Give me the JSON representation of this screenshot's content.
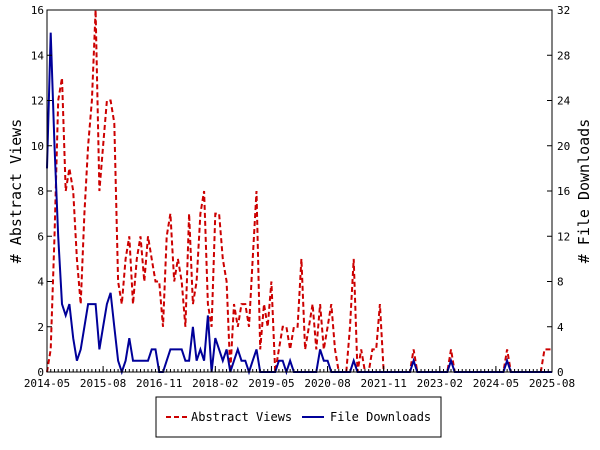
{
  "chart_data": {
    "type": "line",
    "title": "",
    "xlabel": "",
    "ylabel": "# Abstract Views",
    "y2label": "# File Downloads",
    "x_tick_labels": [
      "2014-05",
      "2015-08",
      "2016-11",
      "2018-02",
      "2019-05",
      "2020-08",
      "2021-11",
      "2023-02",
      "2024-05",
      "2025-08"
    ],
    "x_range": [
      "2014-05",
      "2025-08"
    ],
    "ylim": [
      0,
      16
    ],
    "y_ticks": [
      0,
      2,
      4,
      6,
      8,
      10,
      12,
      14,
      16
    ],
    "y2lim": [
      0,
      32
    ],
    "y2_ticks": [
      0,
      4,
      8,
      12,
      16,
      20,
      24,
      28,
      32
    ],
    "grid": false,
    "legend_position": "bottom-center",
    "series": [
      {
        "name": "Abstract Views",
        "axis": "left",
        "color": "#cc0000",
        "style": "dashed",
        "points": [
          [
            "2014-05",
            0
          ],
          [
            "2014-06",
            1
          ],
          [
            "2014-07",
            6
          ],
          [
            "2014-08",
            12
          ],
          [
            "2014-09",
            13
          ],
          [
            "2014-10",
            8
          ],
          [
            "2014-11",
            9
          ],
          [
            "2014-12",
            8
          ],
          [
            "2015-01",
            5
          ],
          [
            "2015-02",
            3
          ],
          [
            "2015-03",
            7
          ],
          [
            "2015-04",
            10
          ],
          [
            "2015-05",
            12
          ],
          [
            "2015-06",
            16
          ],
          [
            "2015-07",
            8
          ],
          [
            "2015-08",
            10
          ],
          [
            "2015-09",
            12
          ],
          [
            "2015-10",
            12
          ],
          [
            "2015-11",
            11
          ],
          [
            "2015-12",
            4
          ],
          [
            "2016-01",
            3
          ],
          [
            "2016-02",
            5
          ],
          [
            "2016-03",
            6
          ],
          [
            "2016-04",
            3
          ],
          [
            "2016-05",
            5
          ],
          [
            "2016-06",
            6
          ],
          [
            "2016-07",
            4
          ],
          [
            "2016-08",
            6
          ],
          [
            "2016-09",
            5
          ],
          [
            "2016-10",
            4
          ],
          [
            "2016-11",
            4
          ],
          [
            "2016-12",
            2
          ],
          [
            "2017-01",
            6
          ],
          [
            "2017-02",
            7
          ],
          [
            "2017-03",
            4
          ],
          [
            "2017-04",
            5
          ],
          [
            "2017-05",
            4
          ],
          [
            "2017-06",
            2
          ],
          [
            "2017-07",
            7
          ],
          [
            "2017-08",
            3
          ],
          [
            "2017-09",
            4
          ],
          [
            "2017-10",
            7
          ],
          [
            "2017-11",
            8
          ],
          [
            "2017-12",
            3
          ],
          [
            "2018-01",
            2
          ],
          [
            "2018-02",
            7
          ],
          [
            "2018-03",
            7
          ],
          [
            "2018-04",
            5
          ],
          [
            "2018-05",
            4
          ],
          [
            "2018-06",
            0
          ],
          [
            "2018-07",
            3
          ],
          [
            "2018-08",
            2
          ],
          [
            "2018-09",
            3
          ],
          [
            "2018-10",
            3
          ],
          [
            "2018-11",
            2
          ],
          [
            "2018-12",
            5
          ],
          [
            "2019-01",
            8
          ],
          [
            "2019-02",
            1
          ],
          [
            "2019-03",
            3
          ],
          [
            "2019-04",
            2
          ],
          [
            "2019-05",
            4
          ],
          [
            "2019-06",
            0
          ],
          [
            "2019-07",
            1
          ],
          [
            "2019-08",
            2
          ],
          [
            "2019-09",
            2
          ],
          [
            "2019-10",
            1
          ],
          [
            "2019-11",
            2
          ],
          [
            "2019-12",
            2
          ],
          [
            "2020-01",
            5
          ],
          [
            "2020-02",
            1
          ],
          [
            "2020-03",
            2
          ],
          [
            "2020-04",
            3
          ],
          [
            "2020-05",
            1
          ],
          [
            "2020-06",
            3
          ],
          [
            "2020-07",
            1
          ],
          [
            "2020-08",
            2
          ],
          [
            "2020-09",
            3
          ],
          [
            "2020-10",
            1
          ],
          [
            "2020-11",
            0
          ],
          [
            "2020-12",
            0
          ],
          [
            "2021-01",
            0
          ],
          [
            "2021-02",
            2
          ],
          [
            "2021-03",
            5
          ],
          [
            "2021-04",
            0
          ],
          [
            "2021-05",
            1
          ],
          [
            "2021-06",
            0
          ],
          [
            "2021-07",
            0
          ],
          [
            "2021-08",
            1
          ],
          [
            "2021-09",
            1
          ],
          [
            "2021-10",
            3
          ],
          [
            "2021-11",
            0
          ],
          [
            "2021-12",
            0
          ],
          [
            "2022-01",
            0
          ],
          [
            "2022-02",
            0
          ],
          [
            "2022-03",
            0
          ],
          [
            "2022-04",
            0
          ],
          [
            "2022-05",
            0
          ],
          [
            "2022-06",
            0
          ],
          [
            "2022-07",
            1
          ],
          [
            "2022-08",
            0
          ],
          [
            "2022-09",
            0
          ],
          [
            "2022-10",
            0
          ],
          [
            "2022-11",
            0
          ],
          [
            "2022-12",
            0
          ],
          [
            "2023-01",
            0
          ],
          [
            "2023-02",
            0
          ],
          [
            "2023-03",
            0
          ],
          [
            "2023-04",
            0
          ],
          [
            "2023-05",
            1
          ],
          [
            "2023-06",
            0
          ],
          [
            "2023-07",
            0
          ],
          [
            "2023-08",
            0
          ],
          [
            "2023-09",
            0
          ],
          [
            "2023-10",
            0
          ],
          [
            "2023-11",
            0
          ],
          [
            "2023-12",
            0
          ],
          [
            "2024-01",
            0
          ],
          [
            "2024-02",
            0
          ],
          [
            "2024-03",
            0
          ],
          [
            "2024-04",
            0
          ],
          [
            "2024-05",
            0
          ],
          [
            "2024-06",
            0
          ],
          [
            "2024-07",
            0
          ],
          [
            "2024-08",
            1
          ],
          [
            "2024-09",
            0
          ],
          [
            "2024-10",
            0
          ],
          [
            "2024-11",
            0
          ],
          [
            "2024-12",
            0
          ],
          [
            "2025-01",
            0
          ],
          [
            "2025-02",
            0
          ],
          [
            "2025-03",
            0
          ],
          [
            "2025-04",
            0
          ],
          [
            "2025-05",
            0
          ],
          [
            "2025-06",
            1
          ],
          [
            "2025-07",
            1
          ],
          [
            "2025-08",
            1
          ]
        ]
      },
      {
        "name": "File Downloads",
        "axis": "right",
        "color": "#000099",
        "style": "solid",
        "points": [
          [
            "2014-05",
            18
          ],
          [
            "2014-06",
            30
          ],
          [
            "2014-07",
            20
          ],
          [
            "2014-08",
            12
          ],
          [
            "2014-09",
            6
          ],
          [
            "2014-10",
            5
          ],
          [
            "2014-11",
            6
          ],
          [
            "2014-12",
            3
          ],
          [
            "2015-01",
            1
          ],
          [
            "2015-02",
            2
          ],
          [
            "2015-03",
            4
          ],
          [
            "2015-04",
            6
          ],
          [
            "2015-05",
            6
          ],
          [
            "2015-06",
            6
          ],
          [
            "2015-07",
            2
          ],
          [
            "2015-08",
            4
          ],
          [
            "2015-09",
            6
          ],
          [
            "2015-10",
            7
          ],
          [
            "2015-11",
            4
          ],
          [
            "2015-12",
            1
          ],
          [
            "2016-01",
            0
          ],
          [
            "2016-02",
            1
          ],
          [
            "2016-03",
            3
          ],
          [
            "2016-04",
            1
          ],
          [
            "2016-05",
            1
          ],
          [
            "2016-06",
            1
          ],
          [
            "2016-07",
            1
          ],
          [
            "2016-08",
            1
          ],
          [
            "2016-09",
            2
          ],
          [
            "2016-10",
            2
          ],
          [
            "2016-11",
            0
          ],
          [
            "2016-12",
            0
          ],
          [
            "2017-01",
            1
          ],
          [
            "2017-02",
            2
          ],
          [
            "2017-03",
            2
          ],
          [
            "2017-04",
            2
          ],
          [
            "2017-05",
            2
          ],
          [
            "2017-06",
            1
          ],
          [
            "2017-07",
            1
          ],
          [
            "2017-08",
            4
          ],
          [
            "2017-09",
            1
          ],
          [
            "2017-10",
            2
          ],
          [
            "2017-11",
            1
          ],
          [
            "2017-12",
            5
          ],
          [
            "2018-01",
            0
          ],
          [
            "2018-02",
            3
          ],
          [
            "2018-03",
            2
          ],
          [
            "2018-04",
            1
          ],
          [
            "2018-05",
            2
          ],
          [
            "2018-06",
            0
          ],
          [
            "2018-07",
            1
          ],
          [
            "2018-08",
            2
          ],
          [
            "2018-09",
            1
          ],
          [
            "2018-10",
            1
          ],
          [
            "2018-11",
            0
          ],
          [
            "2018-12",
            1
          ],
          [
            "2019-01",
            2
          ],
          [
            "2019-02",
            0
          ],
          [
            "2019-03",
            0
          ],
          [
            "2019-04",
            0
          ],
          [
            "2019-05",
            0
          ],
          [
            "2019-06",
            0
          ],
          [
            "2019-07",
            1
          ],
          [
            "2019-08",
            1
          ],
          [
            "2019-09",
            0
          ],
          [
            "2019-10",
            1
          ],
          [
            "2019-11",
            0
          ],
          [
            "2019-12",
            0
          ],
          [
            "2020-01",
            0
          ],
          [
            "2020-02",
            0
          ],
          [
            "2020-03",
            0
          ],
          [
            "2020-04",
            0
          ],
          [
            "2020-05",
            0
          ],
          [
            "2020-06",
            2
          ],
          [
            "2020-07",
            1
          ],
          [
            "2020-08",
            1
          ],
          [
            "2020-09",
            0
          ],
          [
            "2020-10",
            0
          ],
          [
            "2020-11",
            0
          ],
          [
            "2020-12",
            0
          ],
          [
            "2021-01",
            0
          ],
          [
            "2021-02",
            0
          ],
          [
            "2021-03",
            1
          ],
          [
            "2021-04",
            0
          ],
          [
            "2021-05",
            0
          ],
          [
            "2021-06",
            0
          ],
          [
            "2021-07",
            0
          ],
          [
            "2021-08",
            0
          ],
          [
            "2021-09",
            0
          ],
          [
            "2021-10",
            0
          ],
          [
            "2021-11",
            0
          ],
          [
            "2021-12",
            0
          ],
          [
            "2022-01",
            0
          ],
          [
            "2022-02",
            0
          ],
          [
            "2022-03",
            0
          ],
          [
            "2022-04",
            0
          ],
          [
            "2022-05",
            0
          ],
          [
            "2022-06",
            0
          ],
          [
            "2022-07",
            1
          ],
          [
            "2022-08",
            0
          ],
          [
            "2022-09",
            0
          ],
          [
            "2022-10",
            0
          ],
          [
            "2022-11",
            0
          ],
          [
            "2022-12",
            0
          ],
          [
            "2023-01",
            0
          ],
          [
            "2023-02",
            0
          ],
          [
            "2023-03",
            0
          ],
          [
            "2023-04",
            0
          ],
          [
            "2023-05",
            1
          ],
          [
            "2023-06",
            0
          ],
          [
            "2023-07",
            0
          ],
          [
            "2023-08",
            0
          ],
          [
            "2023-09",
            0
          ],
          [
            "2023-10",
            0
          ],
          [
            "2023-11",
            0
          ],
          [
            "2023-12",
            0
          ],
          [
            "2024-01",
            0
          ],
          [
            "2024-02",
            0
          ],
          [
            "2024-03",
            0
          ],
          [
            "2024-04",
            0
          ],
          [
            "2024-05",
            0
          ],
          [
            "2024-06",
            0
          ],
          [
            "2024-07",
            0
          ],
          [
            "2024-08",
            1
          ],
          [
            "2024-09",
            0
          ],
          [
            "2024-10",
            0
          ],
          [
            "2024-11",
            0
          ],
          [
            "2024-12",
            0
          ],
          [
            "2025-01",
            0
          ],
          [
            "2025-02",
            0
          ],
          [
            "2025-03",
            0
          ],
          [
            "2025-04",
            0
          ],
          [
            "2025-05",
            0
          ],
          [
            "2025-06",
            0
          ],
          [
            "2025-07",
            0
          ],
          [
            "2025-08",
            0
          ]
        ]
      }
    ]
  }
}
